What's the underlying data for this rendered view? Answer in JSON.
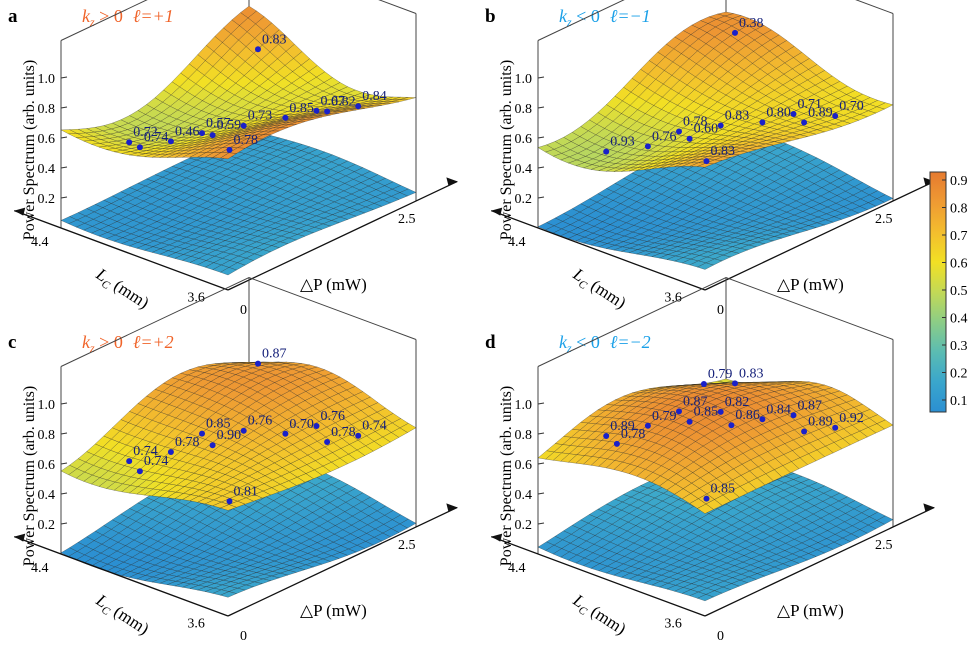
{
  "figure": {
    "colorbar": {
      "ticks": [
        "0.1",
        "0.2",
        "0.3",
        "0.4",
        "0.5",
        "0.6",
        "0.7",
        "0.8",
        "0.9"
      ],
      "colors": [
        "#2b8fd2",
        "#3aa6cc",
        "#5bbcb2",
        "#8ccd86",
        "#c3d956",
        "#f2e024",
        "#f3bd2e",
        "#ee9a33",
        "#e67a2f"
      ]
    },
    "label_colors": {
      "positive": "#f0642a",
      "negative": "#1aa0e8"
    },
    "common": {
      "ylabel": "Power Spectrum (arb. units)",
      "z_ticks": [
        "0.2",
        "0.4",
        "0.6",
        "0.8",
        "1.0"
      ],
      "lc_label": "L",
      "lc_sub": "C",
      "lc_unit": " (mm)",
      "lc_ticks": [
        "4.4",
        "3.6"
      ],
      "dp_label": "△P (mW)",
      "dp_ticks": [
        "0",
        "2.5"
      ]
    }
  },
  "chart_data": [
    {
      "type": "surface",
      "panel": "a",
      "title_kz": "k",
      "title_kz_sub": "z",
      "title_rel": " > 0",
      "title_l": "ℓ=+1",
      "sign": "positive",
      "zlim": [
        0,
        1.1
      ],
      "xlabel": "△P (mW)",
      "ylabel": "Power Spectrum (arb. units)",
      "labeled_points": [
        0.78,
        0.57,
        0.67,
        0.72,
        0.73,
        0.84,
        0.46,
        0.85,
        0.83,
        0.59,
        0.82,
        0.74
      ]
    },
    {
      "type": "surface",
      "panel": "b",
      "title_kz": "k",
      "title_kz_sub": "z",
      "title_rel": " < 0",
      "title_l": "ℓ=−1",
      "sign": "negative",
      "zlim": [
        0,
        1.1
      ],
      "xlabel": "△P (mW)",
      "ylabel": "Power Spectrum (arb. units)",
      "labeled_points": [
        0.83,
        0.78,
        0.71,
        0.93,
        0.83,
        0.7,
        0.76,
        0.8,
        0.38,
        0.6,
        0.89
      ]
    },
    {
      "type": "surface",
      "panel": "c",
      "title_kz": "k",
      "title_kz_sub": "z",
      "title_rel": " > 0",
      "title_l": "ℓ=+2",
      "sign": "positive",
      "zlim": [
        0,
        1.1
      ],
      "xlabel": "△P (mW)",
      "ylabel": "Power Spectrum (arb. units)",
      "labeled_points": [
        0.81,
        0.85,
        0.76,
        0.74,
        0.76,
        0.74,
        0.78,
        0.7,
        0.87,
        0.9,
        0.78,
        0.74
      ]
    },
    {
      "type": "surface",
      "panel": "d",
      "title_kz": "k",
      "title_kz_sub": "z",
      "title_rel": " < 0",
      "title_l": "ℓ=−2",
      "sign": "negative",
      "zlim": [
        0,
        1.1
      ],
      "xlabel": "△P (mW)",
      "ylabel": "Power Spectrum (arb. units)",
      "labeled_points": [
        0.85,
        0.87,
        0.87,
        0.89,
        0.82,
        0.92,
        0.79,
        0.84,
        0.83,
        0.85,
        0.89,
        0.78,
        0.86,
        0.79
      ]
    }
  ]
}
